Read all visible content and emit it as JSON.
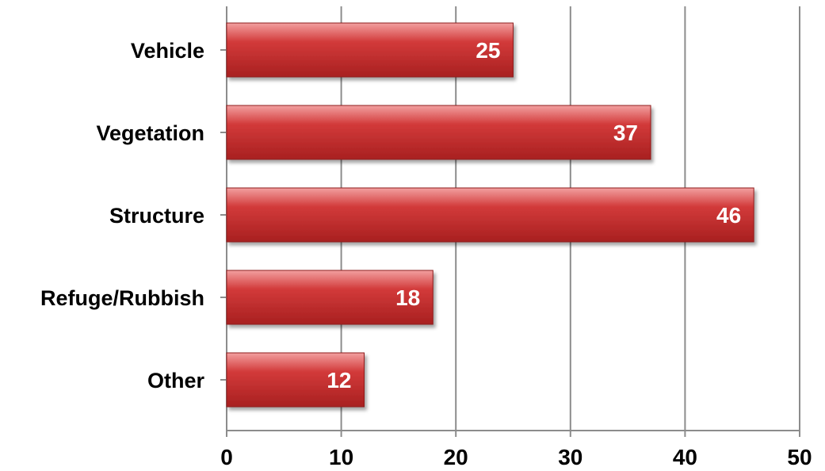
{
  "chart_data": {
    "type": "bar",
    "orientation": "horizontal",
    "categories": [
      "Vehicle",
      "Vegetation",
      "Structure",
      "Refuge/Rubbish",
      "Other"
    ],
    "values": [
      25,
      37,
      46,
      18,
      12
    ],
    "value_labels": [
      "25",
      "37",
      "46",
      "18",
      "12"
    ],
    "xlim": [
      0,
      50
    ],
    "x_ticks": [
      0,
      10,
      20,
      30,
      40,
      50
    ],
    "x_tick_labels": [
      "0",
      "10",
      "20",
      "30",
      "40",
      "50"
    ],
    "title": "",
    "xlabel": "",
    "ylabel": "",
    "grid": "vertical",
    "legend": "none",
    "bar_color": "#d23a3a",
    "bar_color_light": "#f2a0a0",
    "bar_color_dark": "#a82020"
  }
}
